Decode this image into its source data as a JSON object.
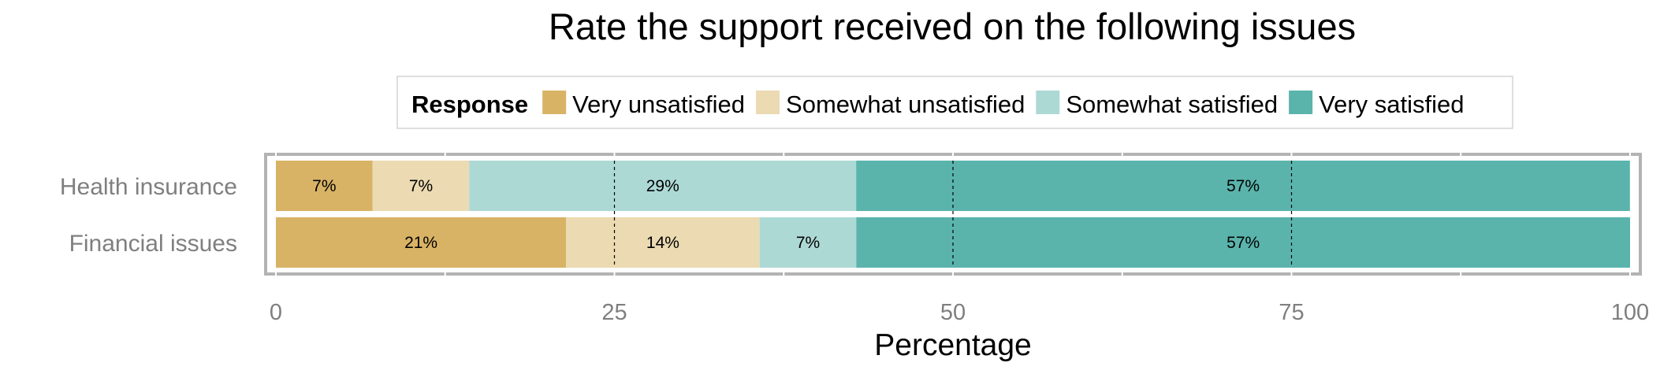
{
  "chart_data": {
    "type": "bar",
    "orientation": "horizontal",
    "stacked": true,
    "title": "Rate the support received on the following issues",
    "xlabel": "Percentage",
    "ylabel": "",
    "xlim": [
      0,
      100
    ],
    "xticks": [
      0,
      25,
      50,
      75,
      100
    ],
    "reference_lines": [
      25,
      50,
      75
    ],
    "legend_title": "Response",
    "legend_position": "top",
    "categories": [
      "Health insurance",
      "Financial issues"
    ],
    "series": [
      {
        "name": "Very unsatisfied",
        "color": "#D8B365",
        "values": [
          7.14,
          21.43
        ],
        "labels": [
          "7%",
          "21%"
        ]
      },
      {
        "name": "Somewhat unsatisfied",
        "color": "#EBDAB2",
        "values": [
          7.14,
          14.29
        ],
        "labels": [
          "7%",
          "14%"
        ]
      },
      {
        "name": "Somewhat satisfied",
        "color": "#ADD9D5",
        "values": [
          28.57,
          7.14
        ],
        "labels": [
          "29%",
          "7%"
        ]
      },
      {
        "name": "Very satisfied",
        "color": "#5AB4AC",
        "values": [
          57.14,
          57.14
        ],
        "labels": [
          "57%",
          "57%"
        ]
      }
    ]
  }
}
